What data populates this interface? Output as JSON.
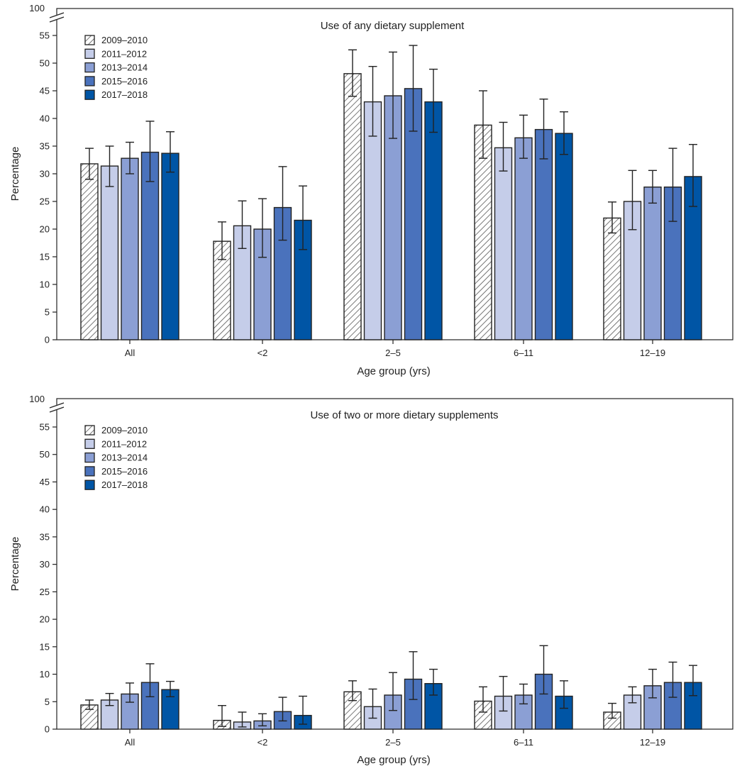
{
  "colors": {
    "s2009": "#ffffff",
    "s2011": "#c5cde9",
    "s2013": "#8b9fd4",
    "s2015": "#4a72bc",
    "s2017": "#0055a5",
    "stroke": "#222222",
    "hatch": "#555555"
  },
  "chart_data": [
    {
      "type": "bar",
      "title": "Use of any dietary supplement",
      "xlabel": "Age group (yrs)",
      "ylabel": "Percentage",
      "ylim": [
        0,
        55
      ],
      "y_break_top_label": "100",
      "yticks": [
        0,
        5,
        10,
        15,
        20,
        25,
        30,
        35,
        40,
        45,
        50,
        55
      ],
      "ytick_labels": [
        "0",
        "5",
        "10",
        "15",
        "20",
        "25",
        "30",
        "35",
        "40",
        "45",
        "50",
        "55"
      ],
      "legend_position": "top-left",
      "categories": [
        "All",
        "<2",
        "2–5",
        "6–11",
        "12–19"
      ],
      "series": [
        {
          "name": "2009–2010",
          "key": "s2009",
          "hatched": true,
          "values": [
            31.8,
            17.8,
            48.1,
            38.8,
            22.0
          ],
          "ci_low": [
            29.0,
            14.5,
            44.0,
            32.8,
            19.3
          ],
          "ci_high": [
            34.6,
            21.3,
            52.4,
            45.0,
            24.9
          ]
        },
        {
          "name": "2011–2012",
          "key": "s2011",
          "hatched": false,
          "values": [
            31.4,
            20.6,
            43.0,
            34.7,
            25.0
          ],
          "ci_low": [
            27.7,
            16.5,
            36.8,
            30.5,
            19.9
          ],
          "ci_high": [
            35.0,
            25.1,
            49.4,
            39.3,
            30.6
          ]
        },
        {
          "name": "2013–2014",
          "key": "s2013",
          "hatched": false,
          "values": [
            32.8,
            20.0,
            44.1,
            36.5,
            27.6
          ],
          "ci_low": [
            30.0,
            14.9,
            36.4,
            32.8,
            24.7
          ],
          "ci_high": [
            35.7,
            25.5,
            52.0,
            40.6,
            30.6
          ]
        },
        {
          "name": "2015–2016",
          "key": "s2015",
          "hatched": false,
          "values": [
            33.9,
            23.9,
            45.4,
            38.0,
            27.6
          ],
          "ci_low": [
            28.6,
            18.0,
            37.7,
            32.7,
            21.4
          ],
          "ci_high": [
            39.5,
            31.3,
            53.2,
            43.5,
            34.6
          ]
        },
        {
          "name": "2017–2018",
          "key": "s2017",
          "hatched": false,
          "values": [
            33.7,
            21.6,
            43.0,
            37.3,
            29.5
          ],
          "ci_low": [
            30.3,
            16.3,
            37.5,
            33.5,
            24.1
          ],
          "ci_high": [
            37.6,
            27.8,
            48.9,
            41.2,
            35.3
          ]
        }
      ]
    },
    {
      "type": "bar",
      "title": "Use of two or more dietary supplements",
      "xlabel": "Age group (yrs)",
      "ylabel": "Percentage",
      "ylim": [
        0,
        55
      ],
      "y_break_top_label": "100",
      "yticks": [
        0,
        5,
        10,
        15,
        20,
        25,
        30,
        35,
        40,
        45,
        50,
        55
      ],
      "ytick_labels": [
        "0",
        "5",
        "10",
        "15",
        "20",
        "25",
        "30",
        "35",
        "40",
        "45",
        "50",
        "55"
      ],
      "legend_position": "top-left",
      "categories": [
        "All",
        "<2",
        "2–5",
        "6–11",
        "12–19"
      ],
      "series": [
        {
          "name": "2009–2010",
          "key": "s2009",
          "hatched": true,
          "values": [
            4.4,
            1.6,
            6.8,
            5.1,
            3.1
          ],
          "ci_low": [
            3.6,
            0.5,
            5.2,
            3.1,
            2.0
          ],
          "ci_high": [
            5.3,
            4.3,
            8.8,
            7.7,
            4.7
          ]
        },
        {
          "name": "2011–2012",
          "key": "s2011",
          "hatched": false,
          "values": [
            5.3,
            1.3,
            4.1,
            6.0,
            6.2
          ],
          "ci_low": [
            4.3,
            0.4,
            2.0,
            3.3,
            4.8
          ],
          "ci_high": [
            6.5,
            3.1,
            7.3,
            9.6,
            7.7
          ]
        },
        {
          "name": "2013–2014",
          "key": "s2013",
          "hatched": false,
          "values": [
            6.4,
            1.5,
            6.2,
            6.2,
            7.9
          ],
          "ci_low": [
            4.9,
            0.6,
            3.4,
            4.6,
            5.7
          ],
          "ci_high": [
            8.4,
            2.8,
            10.3,
            8.2,
            10.9
          ]
        },
        {
          "name": "2015–2016",
          "key": "s2015",
          "hatched": false,
          "values": [
            8.5,
            3.2,
            9.1,
            10.0,
            8.5
          ],
          "ci_low": [
            5.9,
            1.5,
            5.4,
            6.4,
            5.8
          ],
          "ci_high": [
            11.9,
            5.8,
            14.1,
            15.2,
            12.2
          ]
        },
        {
          "name": "2017–2018",
          "key": "s2017",
          "hatched": false,
          "values": [
            7.2,
            2.5,
            8.3,
            6.0,
            8.5
          ],
          "ci_low": [
            5.9,
            0.9,
            6.2,
            3.8,
            6.1
          ],
          "ci_high": [
            8.7,
            6.0,
            10.9,
            8.8,
            11.6
          ]
        }
      ]
    }
  ]
}
